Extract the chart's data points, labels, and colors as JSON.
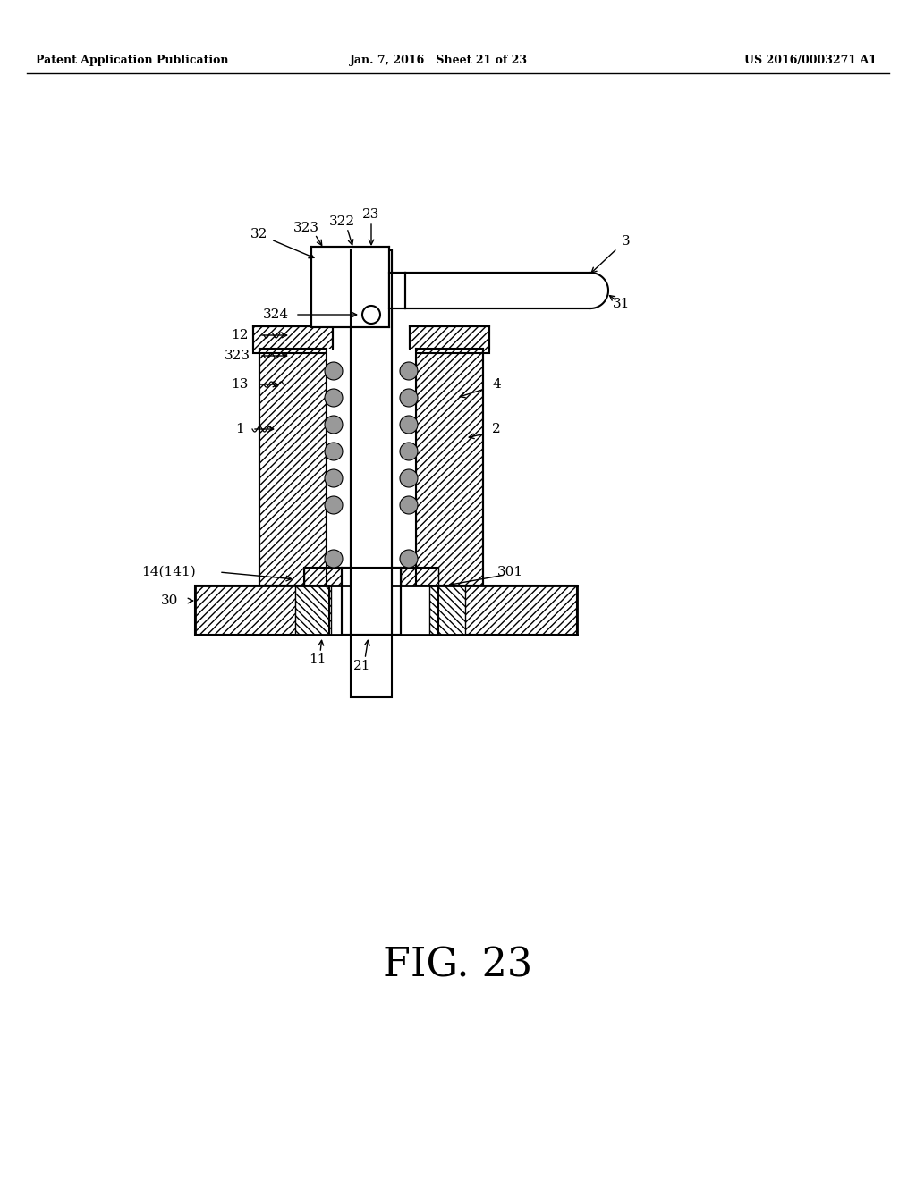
{
  "background_color": "#ffffff",
  "header_left": "Patent Application Publication",
  "header_center": "Jan. 7, 2016   Sheet 21 of 23",
  "header_right": "US 2016/0003271 A1",
  "figure_label": "FIG. 23"
}
